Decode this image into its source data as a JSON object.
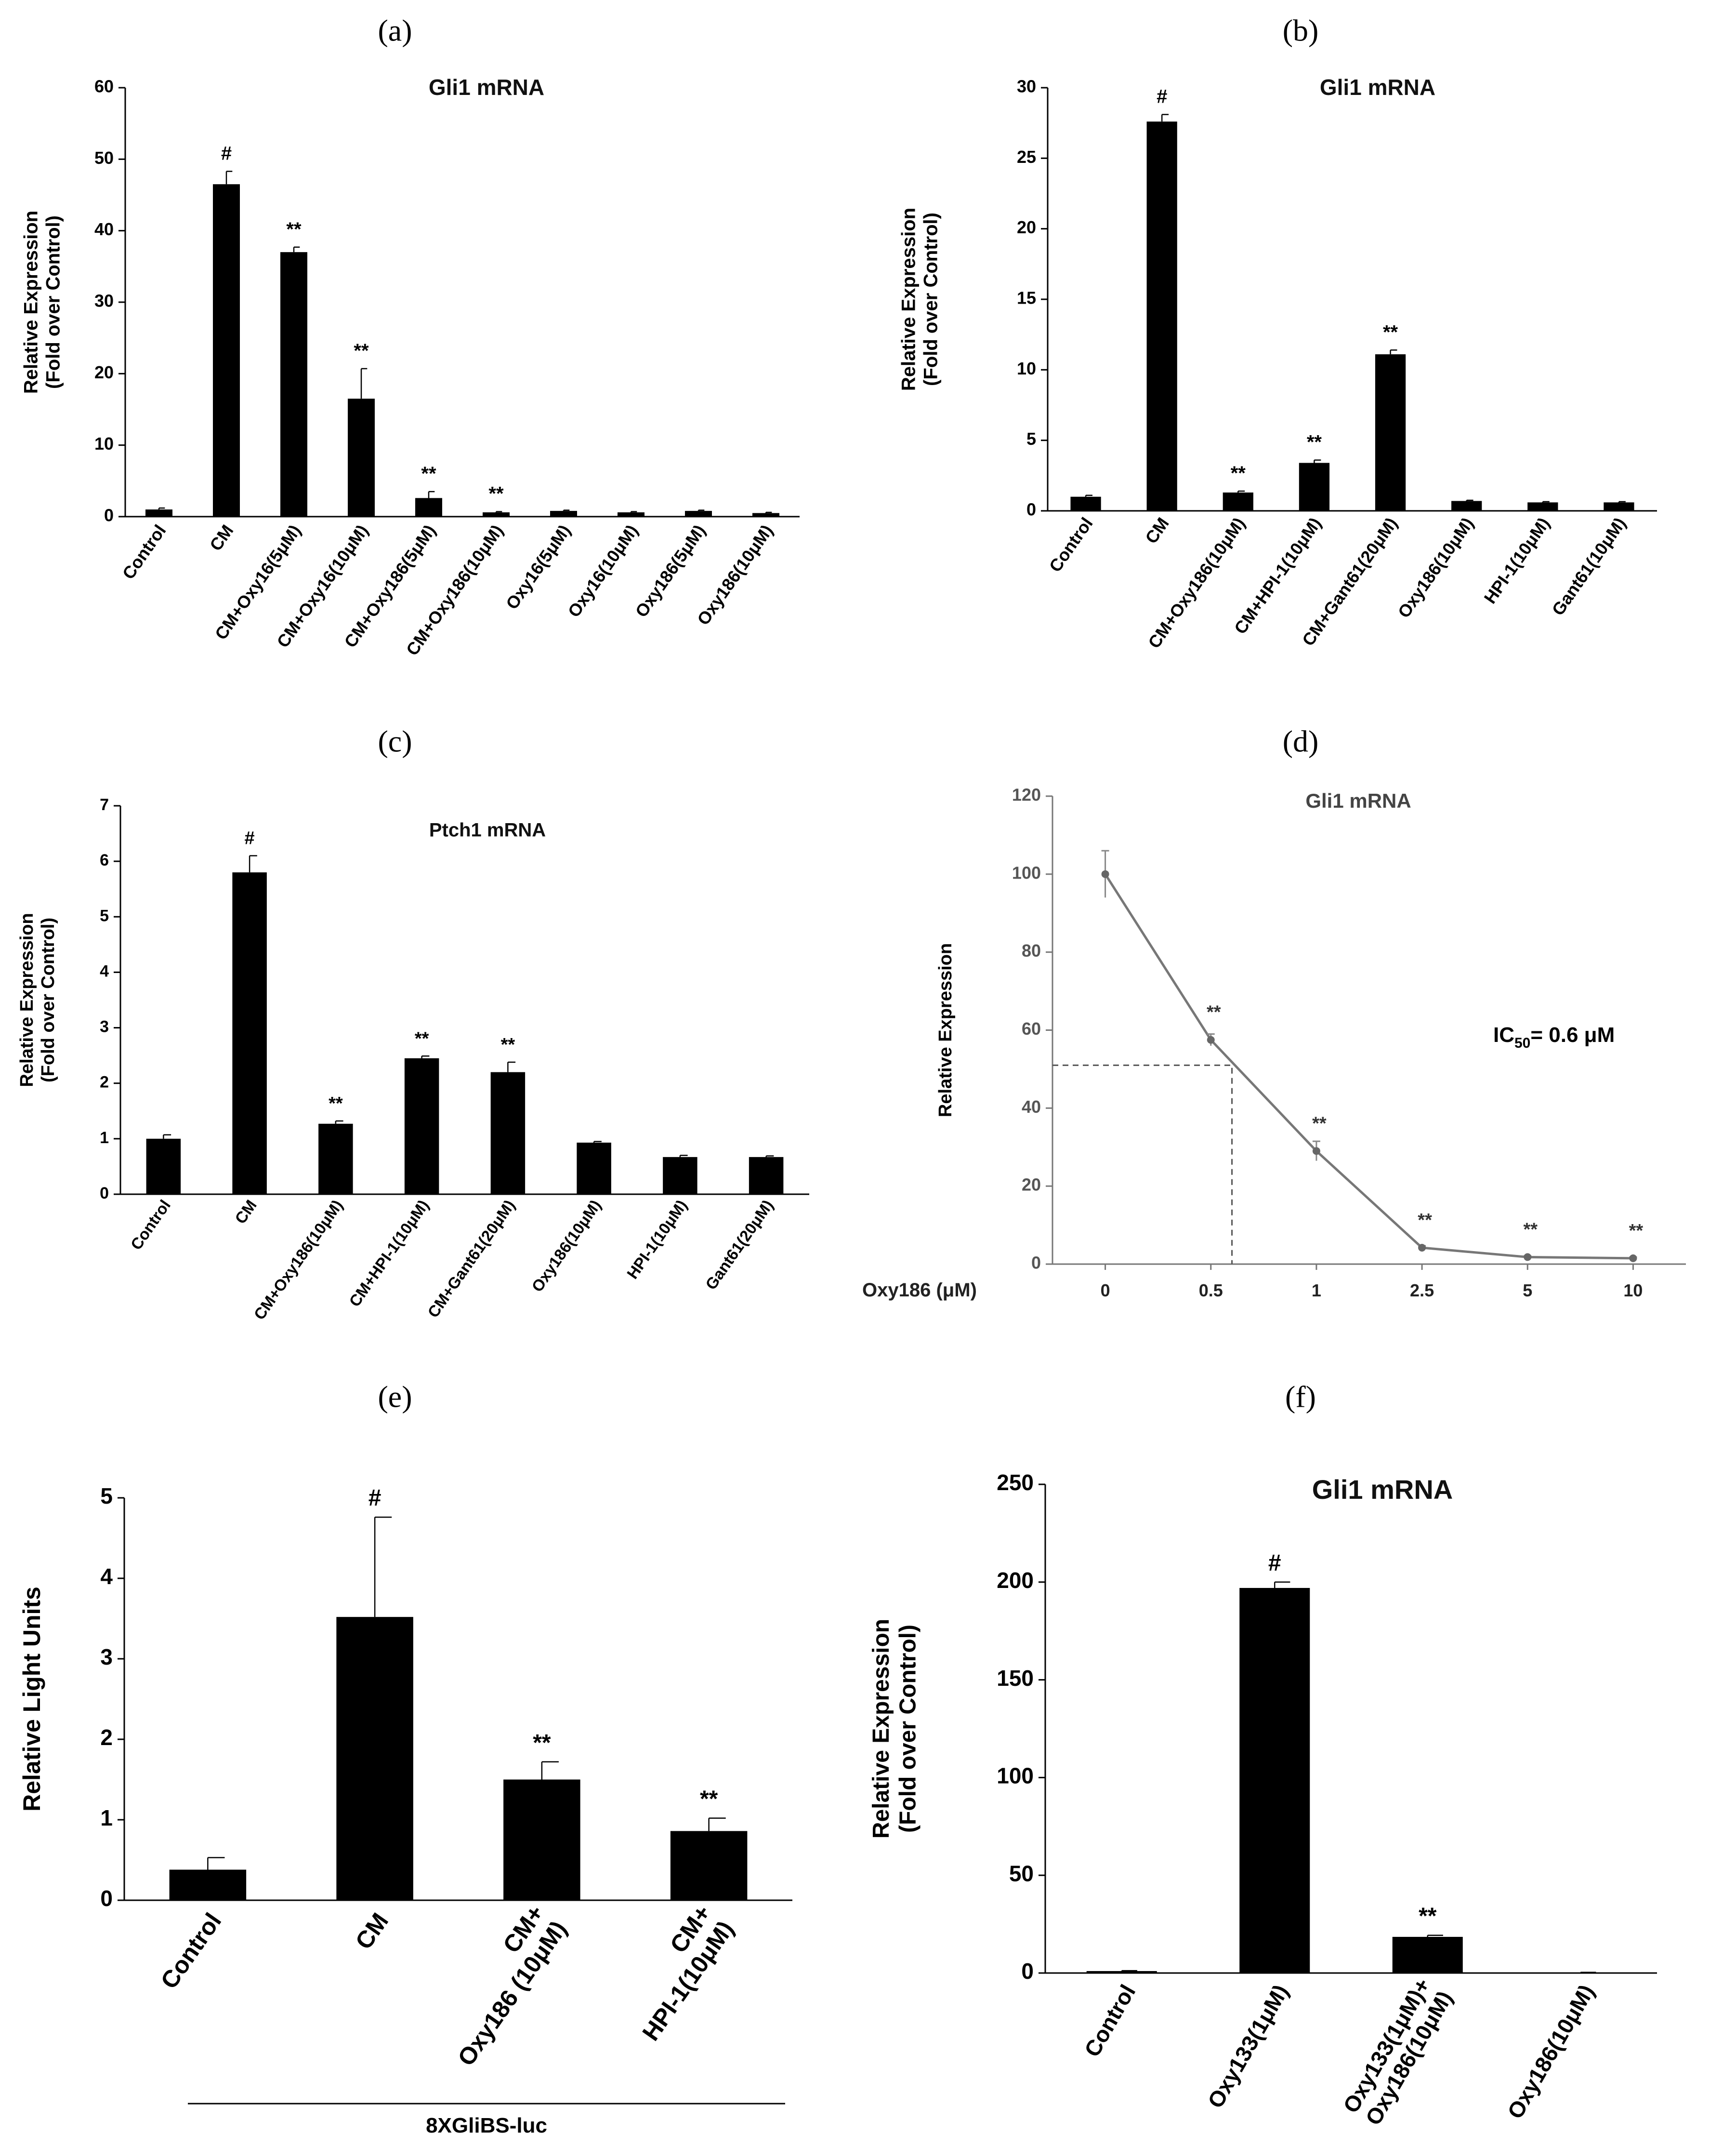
{
  "chart_data": [
    {
      "panel": "(a)",
      "type": "bar",
      "title": "Gli1 mRNA",
      "ylabel": [
        "Relative Expression",
        "(Fold over Control)"
      ],
      "ylim": [
        0,
        60
      ],
      "yticks": [
        0,
        10,
        20,
        30,
        40,
        50,
        60
      ],
      "categories": [
        "Control",
        "CM",
        "CM+Oxy16(5μM)",
        "CM+Oxy16(10μM)",
        "CM+Oxy186(5μM)",
        "CM+Oxy186(10μM)",
        "Oxy16(5μM)",
        "Oxy16(10μM)",
        "Oxy186(5μM)",
        "Oxy186(10μM)"
      ],
      "values": [
        1.0,
        46.5,
        37.0,
        16.5,
        2.6,
        0.6,
        0.8,
        0.6,
        0.8,
        0.5
      ],
      "errors": [
        0.2,
        1.8,
        0.7,
        4.2,
        0.9,
        0.1,
        0.1,
        0.1,
        0.1,
        0.1
      ],
      "markers": [
        "",
        "#",
        "**",
        "**",
        "**",
        "**",
        "",
        "",
        "",
        ""
      ],
      "grid": false,
      "color": "#000000"
    },
    {
      "panel": "(b)",
      "type": "bar",
      "title": "Gli1 mRNA",
      "ylabel": [
        "Relative Expression",
        "(Fold over Control)"
      ],
      "ylim": [
        0,
        30
      ],
      "yticks": [
        0,
        5,
        10,
        15,
        20,
        25,
        30
      ],
      "categories": [
        "Control",
        "CM",
        "CM+Oxy186(10μM)",
        "CM+HPI-1(10μM)",
        "CM+Gant61(20μM)",
        "Oxy186(10μM)",
        "HPI-1(10μM)",
        "Gant61(10μM)"
      ],
      "values": [
        1.0,
        27.6,
        1.3,
        3.4,
        11.1,
        0.7,
        0.6,
        0.6
      ],
      "errors": [
        0.1,
        0.5,
        0.1,
        0.2,
        0.3,
        0.05,
        0.05,
        0.05
      ],
      "markers": [
        "",
        "#",
        "**",
        "**",
        "**",
        "",
        "",
        ""
      ],
      "grid": false,
      "color": "#000000"
    },
    {
      "panel": "(c)",
      "type": "bar",
      "title": "Ptch1 mRNA",
      "ylabel": [
        "Relative Expression",
        "(Fold over Control)"
      ],
      "ylim": [
        0,
        7
      ],
      "yticks": [
        0,
        1,
        2,
        3,
        4,
        5,
        6,
        7
      ],
      "categories": [
        "Control",
        "CM",
        "CM+Oxy186(10μM)",
        "CM+HPI-1(10μM)",
        "CM+Gant61(20μM)",
        "Oxy186(10μM)",
        "HPI-1(10μM)",
        "Gant61(20μM)"
      ],
      "values": [
        1.0,
        5.8,
        1.27,
        2.45,
        2.2,
        0.93,
        0.67,
        0.67
      ],
      "errors": [
        0.07,
        0.3,
        0.05,
        0.04,
        0.18,
        0.02,
        0.03,
        0.02
      ],
      "markers": [
        "",
        "#",
        "**",
        "**",
        "**",
        "",
        "",
        ""
      ],
      "grid": false,
      "color": "#000000"
    },
    {
      "panel": "(d)",
      "type": "line",
      "title": "Gli1 mRNA",
      "ylabel": [
        "Relative Expression"
      ],
      "xlabel": "Oxy186 (μM)",
      "ylim": [
        0,
        120
      ],
      "yticks": [
        0,
        20,
        40,
        60,
        80,
        100,
        120
      ],
      "categories": [
        "0",
        "0.5",
        "1",
        "2.5",
        "5",
        "10"
      ],
      "values": [
        100,
        57.5,
        29,
        4.2,
        1.8,
        1.5
      ],
      "errors": [
        6,
        1.5,
        2.5,
        0.5,
        0.3,
        0.3
      ],
      "markers": [
        "",
        "**",
        "**",
        "**",
        "**",
        "**"
      ],
      "ic50_label": "IC",
      "ic50_sub": "50",
      "ic50_value": "= 0.6 μM",
      "ic50_y": 51,
      "grid": false,
      "color": "#777777"
    },
    {
      "panel": "(e)",
      "type": "bar",
      "title": "",
      "ylabel": [
        "Relative Light Units"
      ],
      "ylim": [
        0,
        5
      ],
      "yticks": [
        0,
        1,
        2,
        3,
        4,
        5
      ],
      "categories": [
        [
          "Control"
        ],
        [
          "CM"
        ],
        [
          "CM+",
          "Oxy186 (10μM)"
        ],
        [
          "CM+",
          "HPI-1(10μM)"
        ]
      ],
      "values": [
        0.38,
        3.52,
        1.5,
        0.86
      ],
      "errors": [
        0.15,
        1.24,
        0.22,
        0.16
      ],
      "markers": [
        "",
        "#",
        "**",
        "**"
      ],
      "group_label": "8XGliBS-luc",
      "grid": false,
      "color": "#000000"
    },
    {
      "panel": "(f)",
      "type": "bar",
      "title": "Gli1 mRNA",
      "ylabel": [
        "Relative Expression",
        "(Fold over Control)"
      ],
      "ylim": [
        0,
        250
      ],
      "yticks": [
        0,
        50,
        100,
        150,
        200,
        250
      ],
      "categories": [
        [
          "Control"
        ],
        [
          "Oxy133(1μM)"
        ],
        [
          "Oxy133(1μM)+",
          "Oxy186(10μM)"
        ],
        [
          "Oxy186(10μM)"
        ]
      ],
      "values": [
        1.0,
        197,
        18.5,
        0.3
      ],
      "errors": [
        0.2,
        3,
        0.8,
        0.05
      ],
      "markers": [
        "",
        "#",
        "**",
        ""
      ],
      "grid": false,
      "color": "#000000"
    }
  ]
}
